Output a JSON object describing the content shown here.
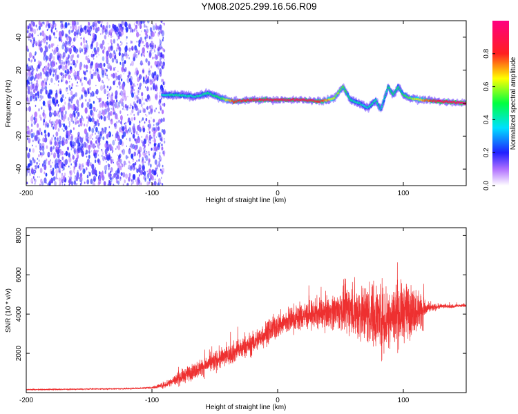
{
  "title": "YM08.2025.299.16.56.R09",
  "colors": {
    "snr_line": "#ee3030",
    "ridge_low": "#2020ff",
    "ridge_mid": "#00e0ff",
    "ridge_high": "#ff2020",
    "noise": "#8a2be2"
  },
  "chart_data": [
    {
      "type": "heatmap",
      "title": "",
      "xlabel": "Height of straight line (km)",
      "ylabel": "Frequency (Hz)",
      "xlim": [
        -200,
        150
      ],
      "ylim": [
        -50,
        50
      ],
      "xticks": [
        "-200",
        "-100",
        "0",
        "100"
      ],
      "xtick_values": [
        -200,
        -100,
        0,
        100
      ],
      "yticks": [
        "-40",
        "-20",
        "0",
        "20",
        "40"
      ],
      "ytick_values": [
        -40,
        -20,
        0,
        20,
        40
      ],
      "grid": false,
      "colorbar": {
        "label": "Normalized spectral amplitude",
        "range": [
          0,
          1
        ],
        "ticks": [
          "0.0",
          "0.2",
          "0.4",
          "0.6",
          "0.8"
        ],
        "tick_values": [
          0.0,
          0.2,
          0.4,
          0.6,
          0.8
        ]
      },
      "noise_region_x": [
        -200,
        -90
      ],
      "ridge": {
        "x": [
          -92,
          -80,
          -65,
          -55,
          -45,
          -35,
          -20,
          0,
          20,
          35,
          45,
          52,
          58,
          65,
          72,
          78,
          82,
          88,
          92,
          96,
          100,
          105,
          115,
          130,
          150
        ],
        "y": [
          5,
          5,
          4,
          6,
          3,
          1,
          2,
          2,
          2,
          1,
          3,
          10,
          2,
          0,
          -3,
          2,
          -4,
          10,
          5,
          10,
          5,
          3,
          2,
          1,
          0
        ],
        "amplitude": [
          0.4,
          0.45,
          0.4,
          0.45,
          0.5,
          0.8,
          0.85,
          0.9,
          0.9,
          0.8,
          0.6,
          0.55,
          0.45,
          0.4,
          0.4,
          0.45,
          0.4,
          0.45,
          0.5,
          0.45,
          0.5,
          0.55,
          0.7,
          0.9,
          0.95
        ]
      }
    },
    {
      "type": "line",
      "title": "",
      "xlabel": "Height of straight line (km)",
      "ylabel": "SNR (10 * v/v)",
      "xlim": [
        -200,
        150
      ],
      "ylim": [
        0,
        8400
      ],
      "xticks": [
        "-200",
        "-100",
        "0",
        "100"
      ],
      "xtick_values": [
        -200,
        -100,
        0,
        100
      ],
      "yticks": [
        "2000",
        "4000",
        "6000",
        "8000"
      ],
      "ytick_values": [
        2000,
        4000,
        6000,
        8000
      ],
      "grid": false,
      "series_envelope": {
        "x": [
          -200,
          -120,
          -100,
          -90,
          -80,
          -70,
          -60,
          -50,
          -40,
          -30,
          -20,
          -10,
          0,
          10,
          20,
          30,
          40,
          50,
          55,
          60,
          65,
          70,
          75,
          80,
          85,
          90,
          95,
          100,
          105,
          110,
          115,
          120,
          130,
          140,
          150
        ],
        "y_mean": [
          150,
          200,
          250,
          400,
          700,
          1000,
          1300,
          1600,
          1900,
          2200,
          2500,
          3000,
          3400,
          3700,
          3900,
          4000,
          4100,
          4200,
          4300,
          4200,
          4100,
          4000,
          4000,
          3900,
          3800,
          3900,
          4000,
          4100,
          4200,
          4200,
          4200,
          4300,
          4400,
          4400,
          4450
        ],
        "y_amp": [
          50,
          60,
          80,
          300,
          600,
          700,
          800,
          900,
          900,
          1000,
          1000,
          1100,
          1100,
          1200,
          1200,
          1300,
          1400,
          1800,
          2200,
          2400,
          2600,
          2800,
          2900,
          3000,
          3300,
          3200,
          2800,
          2600,
          2400,
          2000,
          1600,
          400,
          200,
          150,
          150
        ]
      }
    }
  ]
}
